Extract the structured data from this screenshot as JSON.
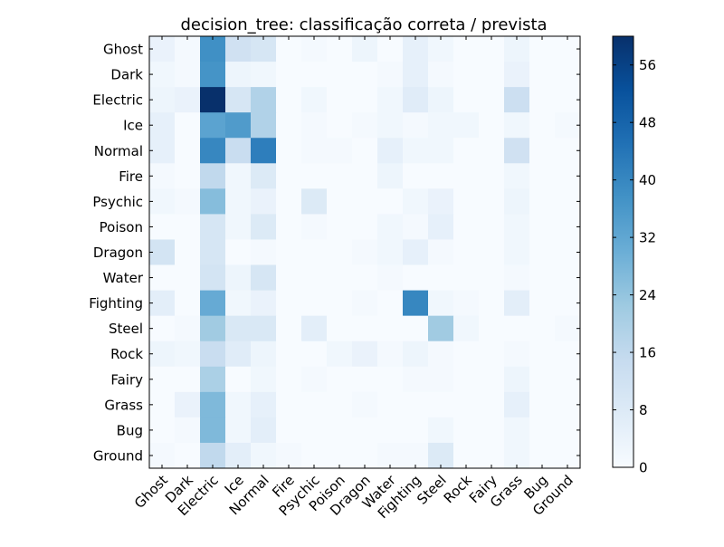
{
  "chart_data": {
    "type": "heatmap",
    "title": "decision_tree: classificação correta / prevista",
    "row_labels": [
      "Ghost",
      "Dark",
      "Electric",
      "Ice",
      "Normal",
      "Fire",
      "Psychic",
      "Poison",
      "Dragon",
      "Water",
      "Fighting",
      "Steel",
      "Rock",
      "Fairy",
      "Grass",
      "Bug",
      "Ground"
    ],
    "col_labels": [
      "Ghost",
      "Dark",
      "Electric",
      "Ice",
      "Normal",
      "Fire",
      "Psychic",
      "Poison",
      "Dragon",
      "Water",
      "Fighting",
      "Steel",
      "Rock",
      "Fairy",
      "Grass",
      "Bug",
      "Ground"
    ],
    "values": [
      [
        4,
        1,
        38,
        12,
        10,
        0,
        1,
        0,
        3,
        0,
        5,
        2,
        0,
        0,
        3,
        0,
        0
      ],
      [
        2,
        1,
        37,
        3,
        2,
        0,
        0,
        0,
        0,
        1,
        5,
        1,
        0,
        0,
        4,
        0,
        0
      ],
      [
        3,
        4,
        60,
        10,
        19,
        0,
        2,
        0,
        0,
        2,
        7,
        3,
        0,
        0,
        13,
        0,
        0
      ],
      [
        5,
        0,
        33,
        35,
        19,
        0,
        1,
        0,
        1,
        2,
        1,
        2,
        2,
        0,
        2,
        0,
        1
      ],
      [
        5,
        0,
        40,
        14,
        42,
        0,
        1,
        1,
        0,
        5,
        2,
        2,
        0,
        0,
        12,
        0,
        0
      ],
      [
        1,
        0,
        16,
        2,
        8,
        0,
        0,
        0,
        0,
        3,
        0,
        0,
        0,
        0,
        2,
        0,
        0
      ],
      [
        2,
        1,
        26,
        2,
        4,
        0,
        8,
        0,
        0,
        0,
        2,
        4,
        0,
        0,
        3,
        0,
        0
      ],
      [
        0,
        0,
        10,
        2,
        8,
        0,
        1,
        0,
        0,
        2,
        1,
        5,
        0,
        0,
        2,
        0,
        0
      ],
      [
        11,
        0,
        10,
        0,
        1,
        0,
        0,
        0,
        1,
        2,
        5,
        1,
        0,
        0,
        2,
        0,
        0
      ],
      [
        0,
        0,
        11,
        3,
        10,
        0,
        0,
        0,
        0,
        1,
        0,
        0,
        0,
        0,
        1,
        0,
        0
      ],
      [
        6,
        0,
        31,
        2,
        4,
        0,
        0,
        0,
        1,
        0,
        40,
        2,
        1,
        0,
        6,
        0,
        0
      ],
      [
        0,
        1,
        22,
        9,
        9,
        0,
        6,
        0,
        0,
        0,
        0,
        22,
        2,
        0,
        0,
        0,
        1
      ],
      [
        3,
        2,
        14,
        7,
        3,
        0,
        0,
        2,
        4,
        1,
        3,
        1,
        0,
        0,
        1,
        0,
        0
      ],
      [
        0,
        0,
        20,
        0,
        2,
        0,
        1,
        0,
        0,
        0,
        1,
        1,
        0,
        0,
        3,
        0,
        0
      ],
      [
        0,
        4,
        27,
        2,
        5,
        0,
        0,
        0,
        1,
        0,
        0,
        0,
        0,
        0,
        5,
        0,
        0
      ],
      [
        0,
        1,
        27,
        2,
        6,
        0,
        0,
        0,
        0,
        0,
        0,
        2,
        0,
        0,
        2,
        0,
        0
      ],
      [
        1,
        0,
        16,
        6,
        2,
        1,
        0,
        0,
        0,
        1,
        1,
        8,
        0,
        0,
        2,
        0,
        0
      ]
    ],
    "colorbar": {
      "min": 0,
      "max": 60,
      "ticks": [
        0,
        8,
        16,
        24,
        32,
        40,
        48,
        56
      ],
      "colormap": "Blues"
    }
  }
}
